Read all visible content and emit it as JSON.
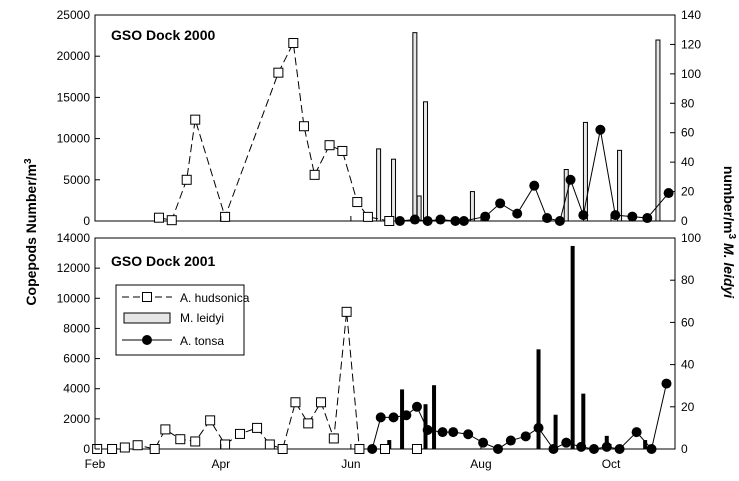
{
  "figure": {
    "left_axis_title": "Copepods Number/m",
    "left_axis_title_sup": "3",
    "right_axis_title_a": "number/m",
    "right_axis_title_sup": "3",
    "right_axis_title_b": " M. leidyi",
    "month_ticks": [
      {
        "label": "Feb",
        "doy": 32
      },
      {
        "label": "Apr",
        "doy": 91
      },
      {
        "label": "Jun",
        "doy": 152
      },
      {
        "label": "Aug",
        "doy": 213
      },
      {
        "label": "Oct",
        "doy": 274
      }
    ]
  },
  "chart_data": [
    {
      "type": "line",
      "title": "GSO Dock 2000",
      "x_unit": "day of year",
      "xlim": [
        32,
        304
      ],
      "ylim_left": [
        0,
        25000
      ],
      "left_ticks": [
        "0",
        "5000",
        "10000",
        "15000",
        "20000",
        "25000"
      ],
      "ylim_right": [
        0,
        140
      ],
      "right_ticks": [
        "0",
        "20",
        "40",
        "60",
        "80",
        "100",
        "120",
        "140"
      ],
      "grid": false,
      "series": [
        {
          "name": "A. hudsonica",
          "axis": "left",
          "style": "dashed-open-square",
          "x": [
            62,
            68,
            75,
            79,
            93,
            118,
            125,
            130,
            135,
            142,
            148,
            155,
            160,
            170
          ],
          "y": [
            400,
            100,
            5000,
            12300,
            500,
            18000,
            21600,
            11500,
            5600,
            9200,
            8500,
            2300,
            500,
            0
          ]
        },
        {
          "name": "M. leidyi",
          "axis": "right",
          "style": "bar",
          "x": [
            165,
            172,
            182,
            184,
            187,
            209,
            253,
            262,
            278,
            296
          ],
          "y": [
            49,
            42,
            128,
            17,
            81,
            20,
            35,
            67,
            48,
            123
          ]
        },
        {
          "name": "A. tonsa",
          "axis": "right",
          "style": "solid-filled-circle",
          "x": [
            175,
            182,
            188,
            194,
            201,
            205,
            215,
            222,
            230,
            238,
            244,
            250,
            255,
            261,
            269,
            276,
            284,
            291,
            301
          ],
          "y": [
            0,
            1,
            0,
            1,
            0,
            0,
            3,
            12,
            5,
            24,
            2,
            0,
            28,
            4,
            62,
            4,
            3,
            2,
            19
          ]
        }
      ]
    },
    {
      "type": "line",
      "title": "GSO Dock 2001",
      "x_unit": "day of year",
      "xlim": [
        32,
        304
      ],
      "ylim_left": [
        0,
        14000
      ],
      "left_ticks": [
        "0",
        "2000",
        "4000",
        "6000",
        "8000",
        "10000",
        "12000",
        "14000"
      ],
      "ylim_right": [
        0,
        100
      ],
      "right_ticks": [
        "0",
        "20",
        "40",
        "60",
        "80",
        "100"
      ],
      "grid": false,
      "legend_position": "top-left",
      "series": [
        {
          "name": "A. hudsonica",
          "axis": "left",
          "style": "dashed-open-square",
          "x": [
            33,
            40,
            46,
            52,
            60,
            65,
            72,
            79,
            86,
            93,
            100,
            108,
            114,
            120,
            126,
            132,
            138,
            144,
            150,
            156,
            168,
            183
          ],
          "y": [
            0,
            0,
            100,
            250,
            0,
            1300,
            650,
            500,
            1900,
            300,
            1000,
            1400,
            300,
            0,
            3100,
            1700,
            3100,
            700,
            9100,
            0,
            0,
            0
          ]
        },
        {
          "name": "M. leidyi",
          "axis": "right",
          "style": "bar",
          "x": [
            170,
            176,
            187,
            191,
            240,
            248,
            256,
            261,
            272,
            290
          ],
          "y": [
            4,
            28,
            21,
            30,
            47,
            16,
            96,
            26,
            6,
            4
          ]
        },
        {
          "name": "A. tonsa",
          "axis": "right",
          "style": "solid-filled-circle",
          "x": [
            162,
            166,
            172,
            178,
            183,
            188,
            195,
            200,
            207,
            214,
            221,
            227,
            234,
            240,
            247,
            253,
            260,
            266,
            272,
            278,
            286,
            293,
            300
          ],
          "y": [
            0,
            15,
            15,
            16,
            20,
            9,
            8,
            8,
            7,
            3,
            0,
            4,
            6,
            10,
            0,
            3,
            1,
            0,
            1,
            0,
            8,
            0,
            31
          ]
        }
      ]
    }
  ]
}
